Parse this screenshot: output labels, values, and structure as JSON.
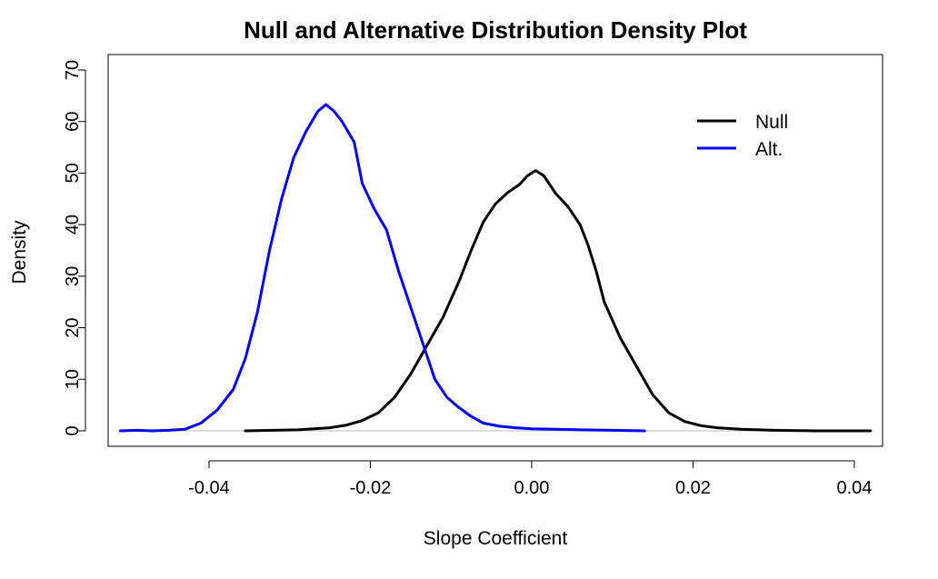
{
  "chart_data": {
    "type": "line",
    "title": "Null and Alternative Distribution Density Plot",
    "xlabel": "Slope Coefficient",
    "ylabel": "Density",
    "xlim": [
      -0.0525,
      0.0435
    ],
    "ylim": [
      -3,
      73
    ],
    "x_ticks": [
      -0.04,
      -0.02,
      0.0,
      0.02,
      0.04
    ],
    "x_tick_labels": [
      "-0.04",
      "-0.02",
      "0.00",
      "0.02",
      "0.04"
    ],
    "y_ticks": [
      0,
      10,
      20,
      30,
      40,
      50,
      60,
      70
    ],
    "y_tick_labels": [
      "0",
      "10",
      "20",
      "30",
      "40",
      "50",
      "60",
      "70"
    ],
    "grid": false,
    "zero_line": true,
    "zero_line_color": "#bebebe",
    "legend_position": "top-right",
    "series": [
      {
        "name": "Null",
        "color": "#000000",
        "x": [
          -0.0355,
          -0.032,
          -0.029,
          -0.027,
          -0.025,
          -0.023,
          -0.021,
          -0.019,
          -0.017,
          -0.015,
          -0.013,
          -0.011,
          -0.009,
          -0.0075,
          -0.006,
          -0.0045,
          -0.003,
          -0.0015,
          -0.0005,
          0.0005,
          0.0015,
          0.003,
          0.0045,
          0.006,
          0.007,
          0.008,
          0.009,
          0.011,
          0.013,
          0.015,
          0.017,
          0.019,
          0.021,
          0.023,
          0.026,
          0.03,
          0.035,
          0.042
        ],
        "y": [
          0.0,
          0.1,
          0.2,
          0.4,
          0.6,
          1.1,
          2.0,
          3.5,
          6.5,
          11.0,
          16.5,
          22.0,
          29.0,
          35.0,
          40.5,
          44.0,
          46.2,
          47.8,
          49.5,
          50.5,
          49.5,
          46.0,
          43.5,
          40.0,
          36.0,
          31.0,
          25.0,
          18.0,
          12.5,
          7.0,
          3.5,
          1.8,
          1.0,
          0.6,
          0.3,
          0.1,
          0.0,
          0.0
        ]
      },
      {
        "name": "Alt.",
        "color": "#0000ff",
        "x": [
          -0.051,
          -0.049,
          -0.047,
          -0.045,
          -0.043,
          -0.041,
          -0.039,
          -0.037,
          -0.0355,
          -0.034,
          -0.0325,
          -0.031,
          -0.0295,
          -0.028,
          -0.0265,
          -0.0255,
          -0.0245,
          -0.0235,
          -0.022,
          -0.021,
          -0.0195,
          -0.018,
          -0.0165,
          -0.015,
          -0.0135,
          -0.012,
          -0.0105,
          -0.009,
          -0.0075,
          -0.006,
          -0.004,
          -0.002,
          0.0,
          0.003,
          0.006,
          0.01,
          0.014
        ],
        "y": [
          0.0,
          0.1,
          0.0,
          0.1,
          0.3,
          1.5,
          4.0,
          8.0,
          14.0,
          23.0,
          35.0,
          45.0,
          53.0,
          58.0,
          62.0,
          63.3,
          62.0,
          60.0,
          56.0,
          48.0,
          43.0,
          39.0,
          31.0,
          24.0,
          17.0,
          10.0,
          6.5,
          4.5,
          2.8,
          1.5,
          0.9,
          0.6,
          0.4,
          0.3,
          0.2,
          0.1,
          0.0
        ]
      }
    ]
  }
}
